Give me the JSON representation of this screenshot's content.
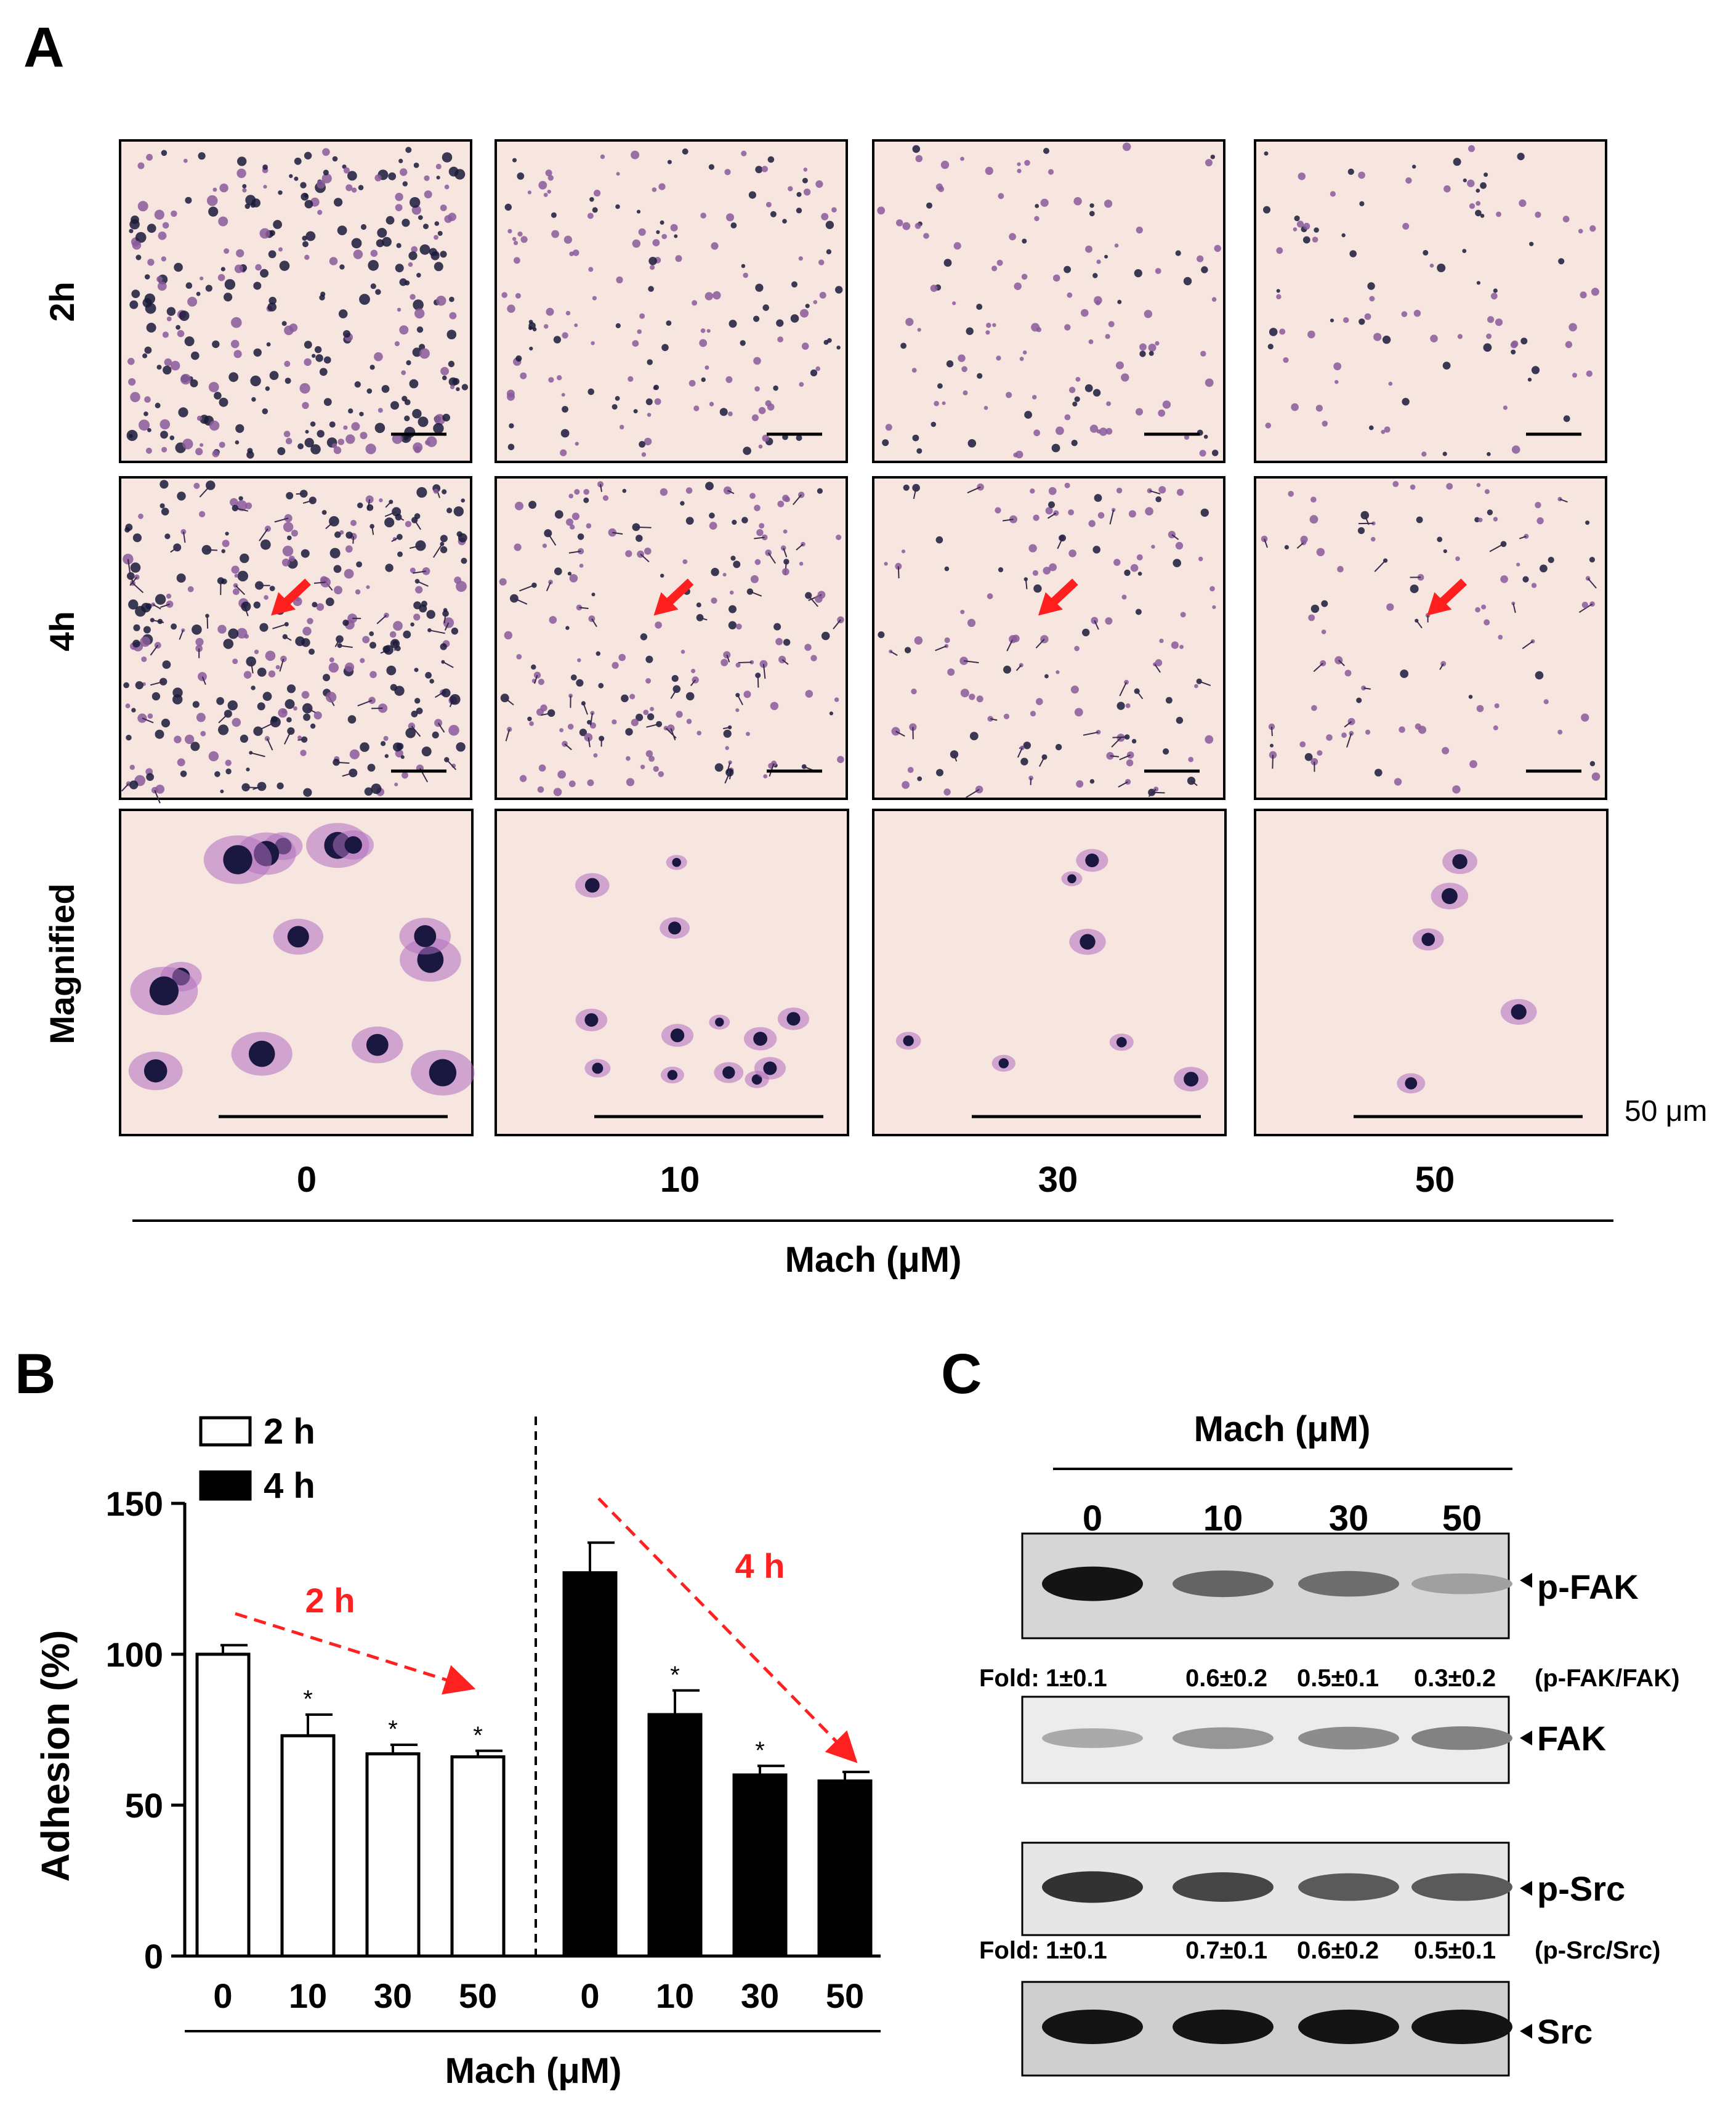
{
  "panel_a": {
    "letter": "A",
    "row_labels": [
      "2h",
      "4h",
      "Magnified"
    ],
    "concentrations": [
      "0",
      "10",
      "30",
      "50"
    ],
    "xlabel": "Mach (μM)",
    "scale_bar": "50 μm",
    "micrographs": [
      {
        "row": "2h",
        "density": [
          1.0,
          0.55,
          0.42,
          0.32
        ],
        "arrows": false
      },
      {
        "row": "4h",
        "density": [
          1.0,
          0.6,
          0.42,
          0.3
        ],
        "arrows": true
      },
      {
        "row": "Magnified",
        "cell_counts": [
          14,
          13,
          7,
          5
        ],
        "arrows": false
      }
    ]
  },
  "panel_b": {
    "letter": "B",
    "legend": [
      "2 h",
      "4 h"
    ],
    "trend_labels": [
      "2 h",
      "4 h"
    ],
    "ylabel": "Adhesion (%)",
    "xlabel": "Mach (μM)",
    "y_ticks": [
      "0",
      "50",
      "100",
      "150"
    ],
    "x_ticks": [
      "0",
      "10",
      "30",
      "50",
      "0",
      "10",
      "30",
      "50"
    ],
    "significance_mark": "*"
  },
  "chart_data": {
    "type": "bar",
    "categories": [
      "0",
      "10",
      "30",
      "50"
    ],
    "series": [
      {
        "name": "2 h",
        "values": [
          100,
          73,
          67,
          66
        ],
        "errors": [
          3,
          7,
          3,
          2
        ],
        "significant": [
          false,
          true,
          true,
          true
        ],
        "color": "#ffffff"
      },
      {
        "name": "4 h",
        "values": [
          127,
          80,
          60,
          58
        ],
        "errors": [
          10,
          8,
          3,
          3
        ],
        "significant": [
          false,
          true,
          true,
          true
        ],
        "color": "#000000"
      }
    ],
    "ylabel": "Adhesion (%)",
    "xlabel": "Mach (μM)",
    "ylim": [
      0,
      150
    ],
    "trend_color": "#ff2020"
  },
  "panel_c": {
    "letter": "C",
    "header": "Mach (μM)",
    "lanes": [
      "0",
      "10",
      "30",
      "50"
    ],
    "blots": [
      {
        "name": "p-FAK",
        "intensity": [
          1.0,
          0.6,
          0.55,
          0.3
        ],
        "background": "#d6d6d6"
      },
      {
        "name": "FAK",
        "intensity": [
          0.25,
          0.35,
          0.4,
          0.45
        ],
        "background": "#ececec"
      },
      {
        "name": "p-Src",
        "intensity": [
          0.85,
          0.75,
          0.65,
          0.65
        ],
        "background": "#e6e6e6"
      },
      {
        "name": "Src",
        "intensity": [
          1.0,
          1.0,
          1.0,
          1.0
        ],
        "background": "#cfcfcf"
      }
    ],
    "fold_rows": [
      {
        "prefix": "Fold:",
        "values": [
          "1±0.1",
          "0.6±0.2",
          "0.5±0.1",
          "0.3±0.2"
        ],
        "ratio": "(p-FAK/FAK)"
      },
      {
        "prefix": "Fold:",
        "values": [
          "1±0.1",
          "0.7±0.1",
          "0.6±0.2",
          "0.5±0.1"
        ],
        "ratio": "(p-Src/Src)"
      }
    ]
  }
}
